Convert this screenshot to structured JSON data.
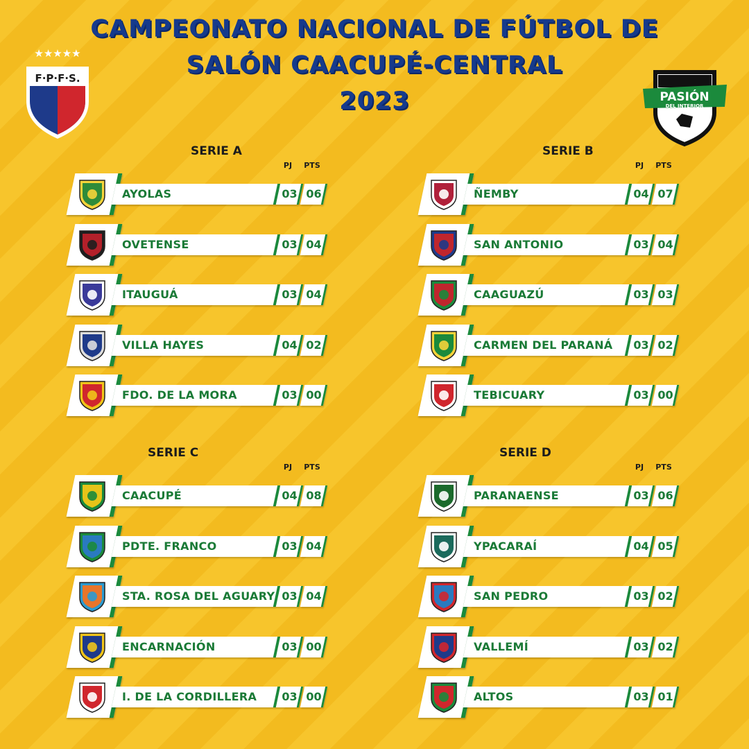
{
  "title": {
    "line1": "CAMPEONATO NACIONAL DE FÚTBOL DE",
    "line2": "SALÓN CAACUPÉ-CENTRAL",
    "line3": "2023"
  },
  "logo_left": {
    "text": "F·P·F·S.",
    "icon": "fpfs-shield-logo",
    "stars": "★★★★★"
  },
  "logo_right": {
    "line1": "PASIÓN",
    "line2": "DEL INTERIOR",
    "icon": "pasion-del-interior-logo"
  },
  "headers": {
    "pj": "PJ",
    "pts": "PTS"
  },
  "colors": {
    "background": "#f7c52c",
    "title": "#163a8c",
    "team": "#1a7a36",
    "accent": "#1b8a3c"
  },
  "series": [
    {
      "name": "SERIE A",
      "teams": [
        {
          "name": "AYOLAS",
          "pj": "03",
          "pts": "06",
          "badge": "ayolas-crest",
          "c1": "#2e8b3a",
          "c2": "#f5d33a"
        },
        {
          "name": "OVETENSE",
          "pj": "03",
          "pts": "04",
          "badge": "ovetense-crest",
          "c1": "#b3202a",
          "c2": "#1e1e1e"
        },
        {
          "name": "ITAUGUÁ",
          "pj": "03",
          "pts": "04",
          "badge": "itaugua-crest",
          "c1": "#3a3a9a",
          "c2": "#ffffff"
        },
        {
          "name": "VILLA HAYES",
          "pj": "04",
          "pts": "02",
          "badge": "villa-hayes-crest",
          "c1": "#1e3a8a",
          "c2": "#dddddd"
        },
        {
          "name": "FDO. DE LA MORA",
          "pj": "03",
          "pts": "00",
          "badge": "fdo-de-la-mora-crest",
          "c1": "#d0262d",
          "c2": "#f0c419"
        }
      ]
    },
    {
      "name": "SERIE B",
      "teams": [
        {
          "name": "ÑEMBY",
          "pj": "04",
          "pts": "07",
          "badge": "nemby-crest",
          "c1": "#b0203a",
          "c2": "#ffffff"
        },
        {
          "name": "SAN ANTONIO",
          "pj": "03",
          "pts": "04",
          "badge": "san-antonio-crest",
          "c1": "#c0262d",
          "c2": "#1e3a8a"
        },
        {
          "name": "CAAGUAZÚ",
          "pj": "03",
          "pts": "03",
          "badge": "caaguazu-crest",
          "c1": "#c0262d",
          "c2": "#1b8a3c"
        },
        {
          "name": "CARMEN DEL PARANÁ",
          "pj": "03",
          "pts": "02",
          "badge": "carmen-del-parana-crest",
          "c1": "#1b8a3c",
          "c2": "#f5d33a"
        },
        {
          "name": "TEBICUARY",
          "pj": "03",
          "pts": "00",
          "badge": "tebicuary-crest",
          "c1": "#d0262d",
          "c2": "#ffffff"
        }
      ]
    },
    {
      "name": "SERIE C",
      "teams": [
        {
          "name": "CAACUPÉ",
          "pj": "04",
          "pts": "08",
          "badge": "caacupe-crest",
          "c1": "#e6c419",
          "c2": "#1b8a3c"
        },
        {
          "name": "PDTE. FRANCO",
          "pj": "03",
          "pts": "04",
          "badge": "pdte-franco-crest",
          "c1": "#2a7ac0",
          "c2": "#1b8a3c"
        },
        {
          "name": "STA. ROSA DEL AGUARY",
          "pj": "03",
          "pts": "04",
          "badge": "sta-rosa-del-aguary-crest",
          "c1": "#e8752a",
          "c2": "#2a9ad0"
        },
        {
          "name": "ENCARNACIÓN",
          "pj": "03",
          "pts": "00",
          "badge": "encarnacion-crest",
          "c1": "#1e3a8a",
          "c2": "#f0c419"
        },
        {
          "name": "I. DE LA CORDILLERA",
          "pj": "03",
          "pts": "00",
          "badge": "i-de-la-cordillera-crest",
          "c1": "#d0262d",
          "c2": "#ffffff"
        }
      ]
    },
    {
      "name": "SERIE D",
      "teams": [
        {
          "name": "PARANAENSE",
          "pj": "03",
          "pts": "06",
          "badge": "paranaense-crest",
          "c1": "#1b6a2c",
          "c2": "#ffffff"
        },
        {
          "name": "YPACARAÍ",
          "pj": "04",
          "pts": "05",
          "badge": "ypacarai-crest",
          "c1": "#1b6a5c",
          "c2": "#ffffff"
        },
        {
          "name": "SAN PEDRO",
          "pj": "03",
          "pts": "02",
          "badge": "san-pedro-crest",
          "c1": "#2a7ac0",
          "c2": "#d0262d"
        },
        {
          "name": "VALLEMÍ",
          "pj": "03",
          "pts": "02",
          "badge": "vallemi-crest",
          "c1": "#1e3a8a",
          "c2": "#d0262d"
        },
        {
          "name": "ALTOS",
          "pj": "03",
          "pts": "01",
          "badge": "altos-crest",
          "c1": "#d0262d",
          "c2": "#1b8a3c"
        }
      ]
    }
  ]
}
